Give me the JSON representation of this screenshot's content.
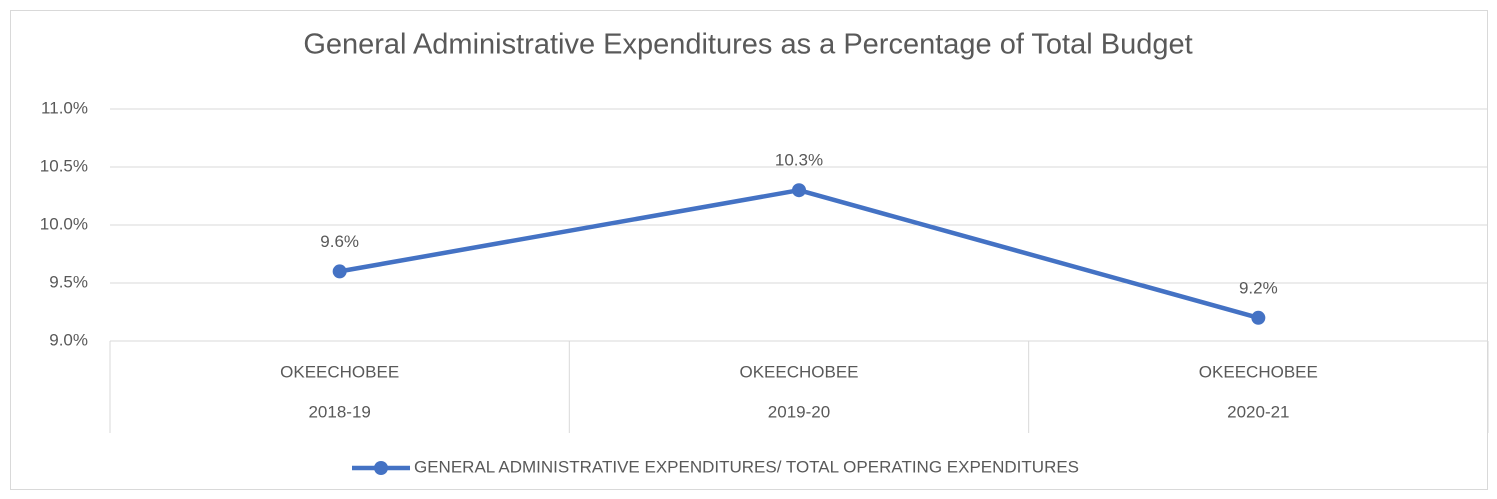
{
  "chart_data": {
    "type": "line",
    "title": "General Administrative Expenditures as a Percentage of Total Budget",
    "categories": [
      [
        "OKEECHOBEE",
        "2018-19"
      ],
      [
        "OKEECHOBEE",
        "2019-20"
      ],
      [
        "OKEECHOBEE",
        "2020-21"
      ]
    ],
    "series": [
      {
        "name": "GENERAL ADMINISTRATIVE EXPENDITURES/ TOTAL OPERATING EXPENDITURES",
        "color": "#4472c4",
        "values": [
          9.6,
          10.3,
          9.2
        ],
        "value_labels": [
          "9.6%",
          "10.3%",
          "9.2%"
        ]
      }
    ],
    "ylim": [
      9,
      11
    ],
    "yticks": [
      {
        "value": 9,
        "label": "9.0%"
      },
      {
        "value": 9.5,
        "label": "9.5%"
      },
      {
        "value": 10,
        "label": "10.0%"
      },
      {
        "value": 10.5,
        "label": "10.5%"
      },
      {
        "value": 11,
        "label": "11.0%"
      }
    ],
    "grid": true,
    "legend": "bottom"
  }
}
